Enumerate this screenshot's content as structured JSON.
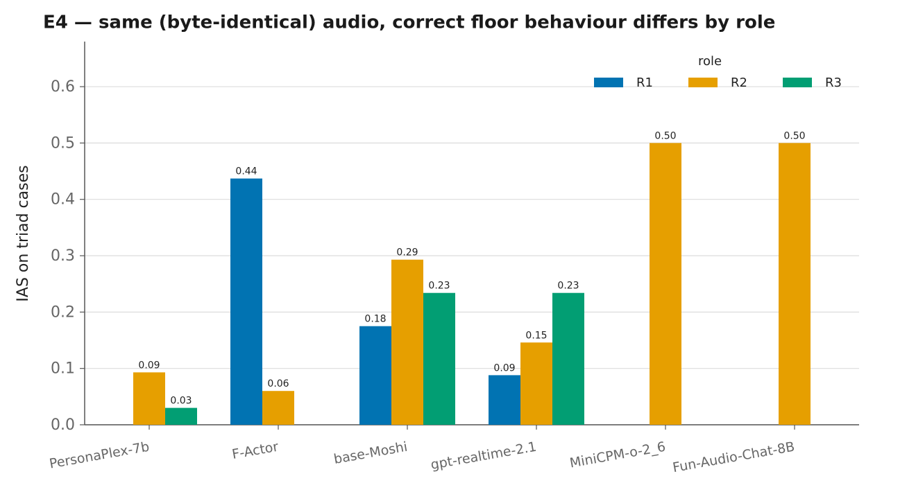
{
  "chart_data": {
    "type": "bar",
    "title": "E4 — same (byte-identical) audio, correct floor behaviour differs by role",
    "y_label": "IAS on triad cases",
    "categories": [
      "PersonaPlex-7b",
      "F-Actor",
      "base-Moshi",
      "gpt-realtime-2.1",
      "MiniCPM-o-2_6",
      "Fun-Audio-Chat-8B"
    ],
    "legend_title": "role",
    "legend": "upper right",
    "series": [
      {
        "name": "R1",
        "color": "#0173b2",
        "values": [
          null,
          0.437,
          0.175,
          0.088,
          null,
          null
        ],
        "value_labels": [
          null,
          "0.44",
          "0.18",
          "0.09",
          null,
          null
        ]
      },
      {
        "name": "R2",
        "color": "#e69f00",
        "values": [
          0.093,
          0.06,
          0.293,
          0.146,
          0.5,
          0.5
        ],
        "value_labels": [
          "0.09",
          "0.06",
          "0.29",
          "0.15",
          "0.50",
          "0.50"
        ]
      },
      {
        "name": "R3",
        "color": "#029e73",
        "values": [
          0.03,
          null,
          0.234,
          0.234,
          null,
          null
        ],
        "value_labels": [
          "0.03",
          null,
          "0.23",
          "0.23",
          null,
          null
        ]
      }
    ],
    "ylim": [
      0,
      0.68
    ],
    "yticks": [
      {
        "value": 0,
        "label": "0.0"
      },
      0.1,
      0.2,
      0.3,
      0.4,
      0.5,
      0.6
    ],
    "grid": true
  }
}
